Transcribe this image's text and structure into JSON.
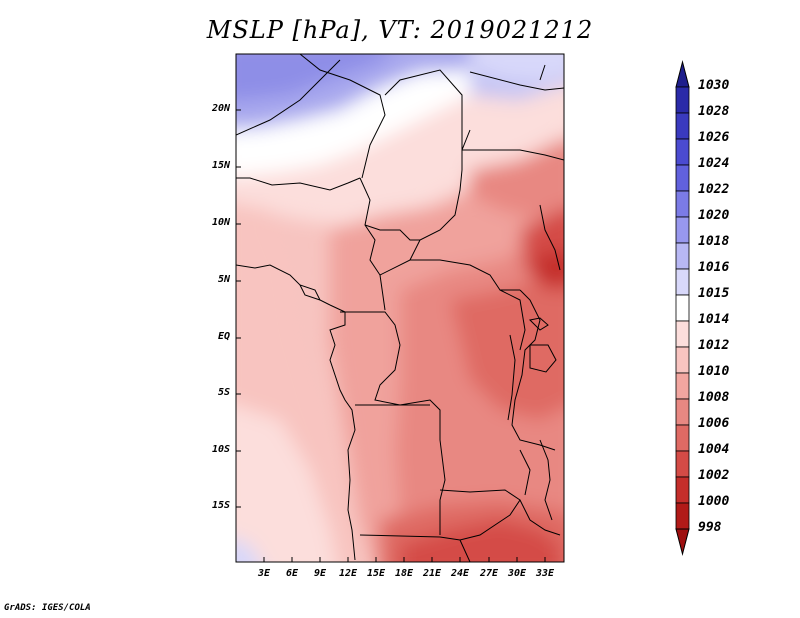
{
  "title": "MSLP [hPa], VT: 2019021212",
  "footer": "GrADS: IGES/COLA",
  "map": {
    "lat_labels": [
      "20N",
      "15N",
      "10N",
      "5N",
      "EQ",
      "5S",
      "10S",
      "15S"
    ],
    "lon_labels": [
      "3E",
      "6E",
      "9E",
      "12E",
      "15E",
      "18E",
      "21E",
      "24E",
      "27E",
      "30E",
      "33E"
    ],
    "frame_color": "#000000"
  },
  "colorbar": {
    "levels": [
      "1030",
      "1028",
      "1026",
      "1024",
      "1022",
      "1020",
      "1018",
      "1016",
      "1015",
      "1014",
      "1012",
      "1010",
      "1008",
      "1006",
      "1004",
      "1002",
      "1000",
      "998"
    ],
    "colors": [
      "#1e1e8c",
      "#2a2aa8",
      "#3a3abf",
      "#4b4bd1",
      "#6161dd",
      "#7b7be6",
      "#9898ee",
      "#b8b8f4",
      "#d8d8fa",
      "#ffffff",
      "#fcdedc",
      "#f8c4c0",
      "#f2a6a0",
      "#e88882",
      "#df6a64",
      "#d44b46",
      "#c42e2b",
      "#b11a18",
      "#9e0f0f"
    ]
  }
}
